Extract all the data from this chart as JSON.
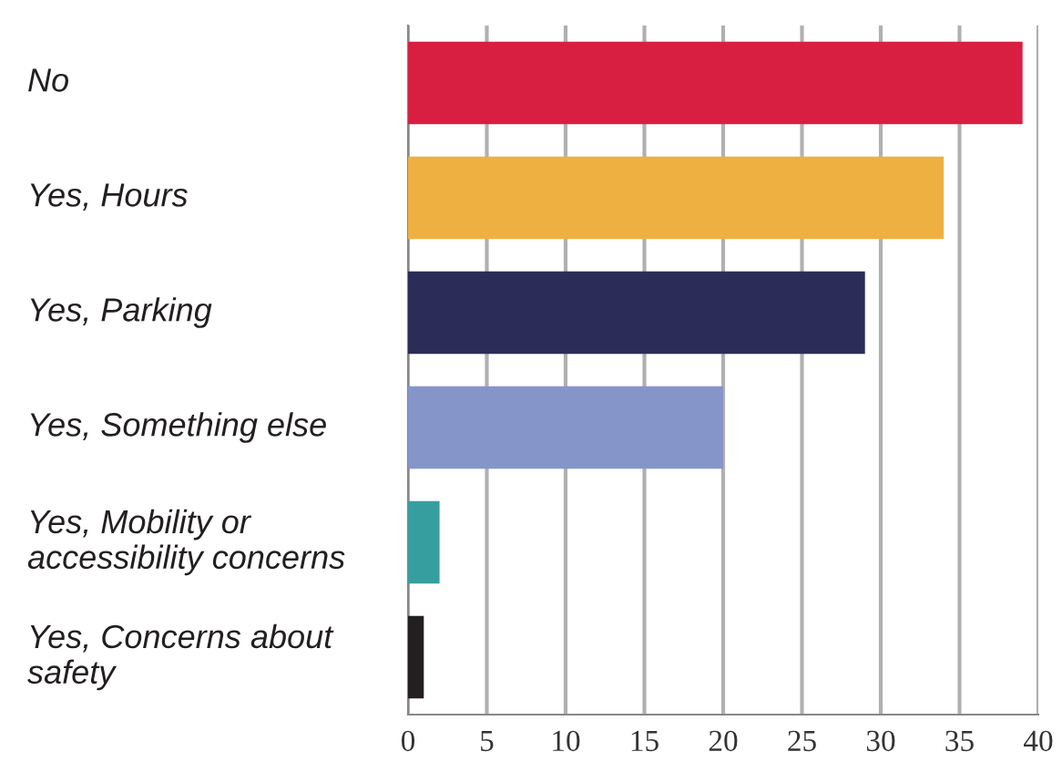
{
  "chart_data": {
    "type": "bar",
    "orientation": "horizontal",
    "categories": [
      "No",
      "Yes, Hours",
      "Yes, Parking",
      "Yes, Something else",
      "Yes, Mobility or\naccessibility concerns",
      "Yes, Concerns about\nsafety"
    ],
    "values": [
      39,
      34,
      29,
      20,
      2,
      1
    ],
    "colors": [
      "#d81f42",
      "#efb042",
      "#2b2d58",
      "#8595ca",
      "#379e9f",
      "#231f20"
    ],
    "xlim": [
      0,
      40
    ],
    "xticks": [
      0,
      5,
      10,
      15,
      20,
      25,
      30,
      35,
      40
    ],
    "grid": "x"
  }
}
